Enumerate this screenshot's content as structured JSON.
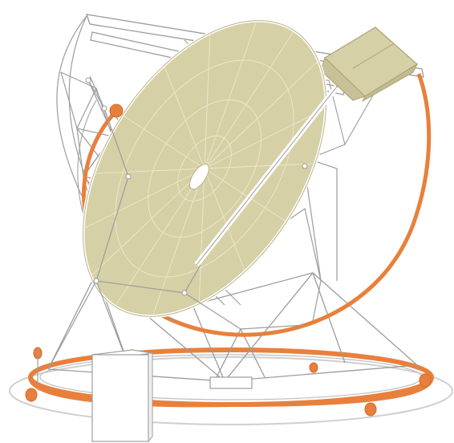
{
  "illustration": {
    "subject": "telescope-dish-on-mount",
    "colors": {
      "dish_fill": "#d6d0a6",
      "dish_stroke": "#bdb68c",
      "frame_stroke": "#9c9c9c",
      "frame_fill": "#ffffff",
      "rail": "#e8803c",
      "rail_dark": "#d4682a",
      "ground_ring": "#c8c8c8",
      "background": "#ffffff"
    },
    "parts": [
      "reflector-dish",
      "space-frame",
      "receiver-cabin",
      "elevation-arc",
      "azimuth-track",
      "control-hut",
      "wheels"
    ]
  }
}
